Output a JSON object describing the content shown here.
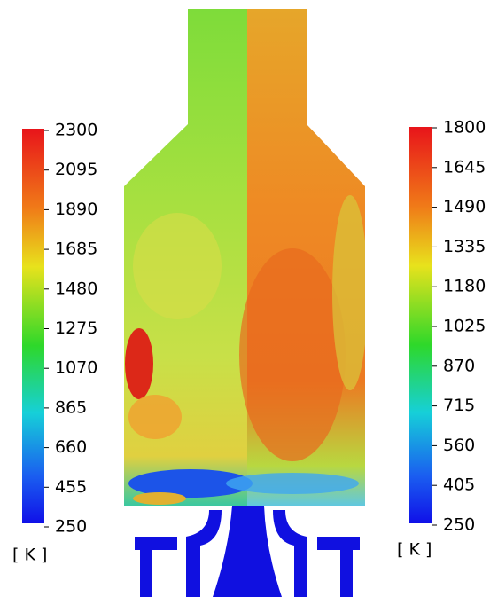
{
  "colorbars": {
    "left": {
      "ticks": [
        "2300",
        "2095",
        "1890",
        "1685",
        "1480",
        "1275",
        "1070",
        "865",
        "660",
        "455",
        "250"
      ],
      "unit": "[ K ]"
    },
    "right": {
      "ticks": [
        "1800",
        "1645",
        "1490",
        "1335",
        "1180",
        "1025",
        "870",
        "715",
        "560",
        "405",
        "250"
      ],
      "unit": "[ K ]"
    }
  }
}
